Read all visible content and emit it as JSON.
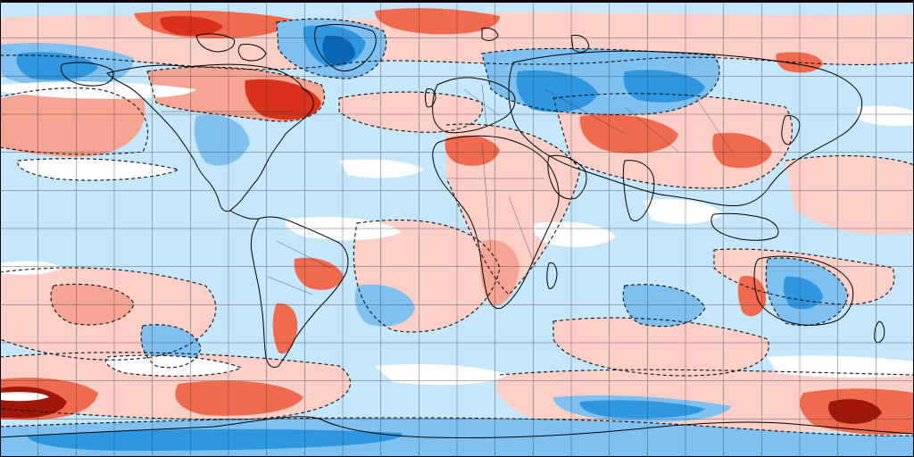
{
  "map": {
    "projection": "equirectangular",
    "graticule_spacing_degrees": 15,
    "grid_line_color": "#3a3a3a",
    "coastline_color": "#000000",
    "contour_color": "#111111",
    "palette": {
      "cold_strong": "#0a66b8",
      "cold_medium": "#2f96e0",
      "cold_light": "#7ec1f0",
      "cold_pale": "#c6e6fb",
      "neutral": "#ffffff",
      "warm_pale": "#fcd0c6",
      "warm_light": "#f7a593",
      "warm_medium": "#f06a4f",
      "warm_strong": "#d8321a",
      "warm_extreme": "#a01608"
    }
  }
}
